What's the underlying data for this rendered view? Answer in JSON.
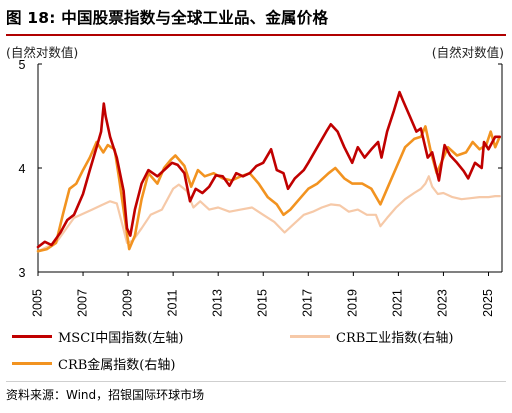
{
  "header": {
    "title": "图 18: 中国股票指数与全球工业品、金属价格",
    "unit_left": "(自然对数值)",
    "unit_right": "(自然对数值)"
  },
  "source": "资料来源：Wind，招银国际环球市场",
  "colors": {
    "title_rule": "#b00000",
    "msci": "#c00000",
    "crb_industrial": "#f6c9a8",
    "crb_metal": "#f29320"
  },
  "chart_data": {
    "type": "line",
    "x_unit": "year",
    "xlim": [
      2005,
      2025.6
    ],
    "ylim": [
      3,
      5
    ],
    "x_ticks": [
      "2005",
      "2007",
      "2009",
      "2011",
      "2013",
      "2015",
      "2017",
      "2019",
      "2021",
      "2023",
      "2025"
    ],
    "y_ticks": [
      "3",
      "4",
      "5"
    ],
    "grid": false,
    "legend_placement": "bottom",
    "series": [
      {
        "name": "MSCI中国指数(左轴)",
        "color": "#c00000",
        "axis": "left",
        "points": [
          [
            2005.0,
            3.24
          ],
          [
            2005.3,
            3.29
          ],
          [
            2005.6,
            3.26
          ],
          [
            2006.0,
            3.38
          ],
          [
            2006.3,
            3.5
          ],
          [
            2006.6,
            3.55
          ],
          [
            2007.0,
            3.75
          ],
          [
            2007.3,
            3.98
          ],
          [
            2007.6,
            4.2
          ],
          [
            2007.8,
            4.35
          ],
          [
            2007.92,
            4.62
          ],
          [
            2008.0,
            4.5
          ],
          [
            2008.2,
            4.3
          ],
          [
            2008.5,
            4.1
          ],
          [
            2008.8,
            3.78
          ],
          [
            2008.95,
            3.42
          ],
          [
            2009.1,
            3.35
          ],
          [
            2009.3,
            3.6
          ],
          [
            2009.6,
            3.85
          ],
          [
            2009.9,
            3.98
          ],
          [
            2010.3,
            3.92
          ],
          [
            2010.7,
            4.0
          ],
          [
            2010.95,
            4.05
          ],
          [
            2011.2,
            4.03
          ],
          [
            2011.5,
            3.95
          ],
          [
            2011.75,
            3.68
          ],
          [
            2012.0,
            3.8
          ],
          [
            2012.3,
            3.76
          ],
          [
            2012.6,
            3.82
          ],
          [
            2012.9,
            3.93
          ],
          [
            2013.2,
            3.92
          ],
          [
            2013.5,
            3.83
          ],
          [
            2013.8,
            3.95
          ],
          [
            2014.1,
            3.92
          ],
          [
            2014.4,
            3.95
          ],
          [
            2014.7,
            4.02
          ],
          [
            2015.0,
            4.05
          ],
          [
            2015.35,
            4.18
          ],
          [
            2015.6,
            3.98
          ],
          [
            2015.9,
            3.95
          ],
          [
            2016.1,
            3.8
          ],
          [
            2016.4,
            3.9
          ],
          [
            2016.8,
            3.98
          ],
          [
            2017.0,
            4.05
          ],
          [
            2017.4,
            4.2
          ],
          [
            2017.8,
            4.35
          ],
          [
            2018.0,
            4.42
          ],
          [
            2018.3,
            4.35
          ],
          [
            2018.6,
            4.2
          ],
          [
            2018.95,
            4.05
          ],
          [
            2019.2,
            4.2
          ],
          [
            2019.5,
            4.1
          ],
          [
            2019.8,
            4.18
          ],
          [
            2020.1,
            4.25
          ],
          [
            2020.25,
            4.1
          ],
          [
            2020.5,
            4.35
          ],
          [
            2020.8,
            4.55
          ],
          [
            2021.05,
            4.73
          ],
          [
            2021.2,
            4.65
          ],
          [
            2021.5,
            4.5
          ],
          [
            2021.8,
            4.35
          ],
          [
            2022.0,
            4.38
          ],
          [
            2022.3,
            4.1
          ],
          [
            2022.5,
            4.15
          ],
          [
            2022.8,
            3.88
          ],
          [
            2023.05,
            4.22
          ],
          [
            2023.3,
            4.12
          ],
          [
            2023.6,
            4.05
          ],
          [
            2023.9,
            3.97
          ],
          [
            2024.1,
            3.9
          ],
          [
            2024.4,
            4.05
          ],
          [
            2024.7,
            4.0
          ],
          [
            2024.8,
            4.25
          ],
          [
            2025.0,
            4.18
          ],
          [
            2025.3,
            4.3
          ],
          [
            2025.5,
            4.3
          ]
        ]
      },
      {
        "name": "CRB工业指数(右轴)",
        "color": "#f6c9a8",
        "axis": "right",
        "points": [
          [
            2005.0,
            3.2
          ],
          [
            2005.4,
            3.24
          ],
          [
            2005.8,
            3.28
          ],
          [
            2006.2,
            3.4
          ],
          [
            2006.6,
            3.52
          ],
          [
            2007.0,
            3.56
          ],
          [
            2007.4,
            3.6
          ],
          [
            2007.8,
            3.64
          ],
          [
            2008.2,
            3.68
          ],
          [
            2008.5,
            3.66
          ],
          [
            2008.75,
            3.45
          ],
          [
            2008.95,
            3.28
          ],
          [
            2009.2,
            3.3
          ],
          [
            2009.6,
            3.42
          ],
          [
            2010.0,
            3.55
          ],
          [
            2010.5,
            3.6
          ],
          [
            2011.0,
            3.8
          ],
          [
            2011.25,
            3.84
          ],
          [
            2011.6,
            3.78
          ],
          [
            2011.9,
            3.62
          ],
          [
            2012.2,
            3.68
          ],
          [
            2012.6,
            3.6
          ],
          [
            2013.0,
            3.62
          ],
          [
            2013.5,
            3.58
          ],
          [
            2014.0,
            3.6
          ],
          [
            2014.5,
            3.62
          ],
          [
            2015.0,
            3.55
          ],
          [
            2015.5,
            3.48
          ],
          [
            2015.95,
            3.38
          ],
          [
            2016.3,
            3.45
          ],
          [
            2016.8,
            3.55
          ],
          [
            2017.2,
            3.58
          ],
          [
            2017.6,
            3.62
          ],
          [
            2018.0,
            3.65
          ],
          [
            2018.4,
            3.64
          ],
          [
            2018.8,
            3.58
          ],
          [
            2019.2,
            3.6
          ],
          [
            2019.6,
            3.55
          ],
          [
            2020.0,
            3.55
          ],
          [
            2020.2,
            3.44
          ],
          [
            2020.5,
            3.52
          ],
          [
            2020.9,
            3.62
          ],
          [
            2021.3,
            3.7
          ],
          [
            2021.7,
            3.76
          ],
          [
            2022.0,
            3.8
          ],
          [
            2022.2,
            3.85
          ],
          [
            2022.35,
            3.92
          ],
          [
            2022.5,
            3.82
          ],
          [
            2022.75,
            3.75
          ],
          [
            2023.0,
            3.76
          ],
          [
            2023.4,
            3.72
          ],
          [
            2023.8,
            3.7
          ],
          [
            2024.2,
            3.71
          ],
          [
            2024.6,
            3.72
          ],
          [
            2025.0,
            3.72
          ],
          [
            2025.3,
            3.73
          ],
          [
            2025.5,
            3.73
          ]
        ]
      },
      {
        "name": "CRB金属指数(右轴)",
        "color": "#f29320",
        "axis": "right",
        "points": [
          [
            2005.0,
            3.2
          ],
          [
            2005.4,
            3.22
          ],
          [
            2005.8,
            3.28
          ],
          [
            2006.1,
            3.55
          ],
          [
            2006.4,
            3.8
          ],
          [
            2006.7,
            3.85
          ],
          [
            2007.0,
            3.98
          ],
          [
            2007.3,
            4.1
          ],
          [
            2007.6,
            4.25
          ],
          [
            2007.9,
            4.15
          ],
          [
            2008.1,
            4.22
          ],
          [
            2008.4,
            4.18
          ],
          [
            2008.6,
            3.9
          ],
          [
            2008.9,
            3.45
          ],
          [
            2009.05,
            3.22
          ],
          [
            2009.3,
            3.35
          ],
          [
            2009.6,
            3.7
          ],
          [
            2009.9,
            3.95
          ],
          [
            2010.3,
            3.85
          ],
          [
            2010.6,
            4.0
          ],
          [
            2010.9,
            4.08
          ],
          [
            2011.1,
            4.12
          ],
          [
            2011.5,
            4.02
          ],
          [
            2011.8,
            3.82
          ],
          [
            2012.1,
            3.98
          ],
          [
            2012.4,
            3.92
          ],
          [
            2012.8,
            3.95
          ],
          [
            2013.2,
            3.9
          ],
          [
            2013.6,
            3.88
          ],
          [
            2014.0,
            3.92
          ],
          [
            2014.4,
            3.95
          ],
          [
            2014.8,
            3.85
          ],
          [
            2015.2,
            3.72
          ],
          [
            2015.6,
            3.65
          ],
          [
            2015.9,
            3.55
          ],
          [
            2016.2,
            3.6
          ],
          [
            2016.6,
            3.7
          ],
          [
            2017.0,
            3.8
          ],
          [
            2017.4,
            3.85
          ],
          [
            2017.9,
            3.95
          ],
          [
            2018.2,
            4.0
          ],
          [
            2018.6,
            3.9
          ],
          [
            2018.95,
            3.85
          ],
          [
            2019.4,
            3.85
          ],
          [
            2019.8,
            3.8
          ],
          [
            2020.2,
            3.65
          ],
          [
            2020.5,
            3.8
          ],
          [
            2020.9,
            4.0
          ],
          [
            2021.3,
            4.2
          ],
          [
            2021.7,
            4.28
          ],
          [
            2022.0,
            4.3
          ],
          [
            2022.2,
            4.4
          ],
          [
            2022.45,
            4.15
          ],
          [
            2022.7,
            3.95
          ],
          [
            2022.9,
            4.05
          ],
          [
            2023.2,
            4.2
          ],
          [
            2023.6,
            4.12
          ],
          [
            2024.0,
            4.15
          ],
          [
            2024.3,
            4.25
          ],
          [
            2024.6,
            4.18
          ],
          [
            2024.9,
            4.22
          ],
          [
            2025.1,
            4.35
          ],
          [
            2025.3,
            4.2
          ],
          [
            2025.5,
            4.3
          ]
        ]
      }
    ]
  }
}
